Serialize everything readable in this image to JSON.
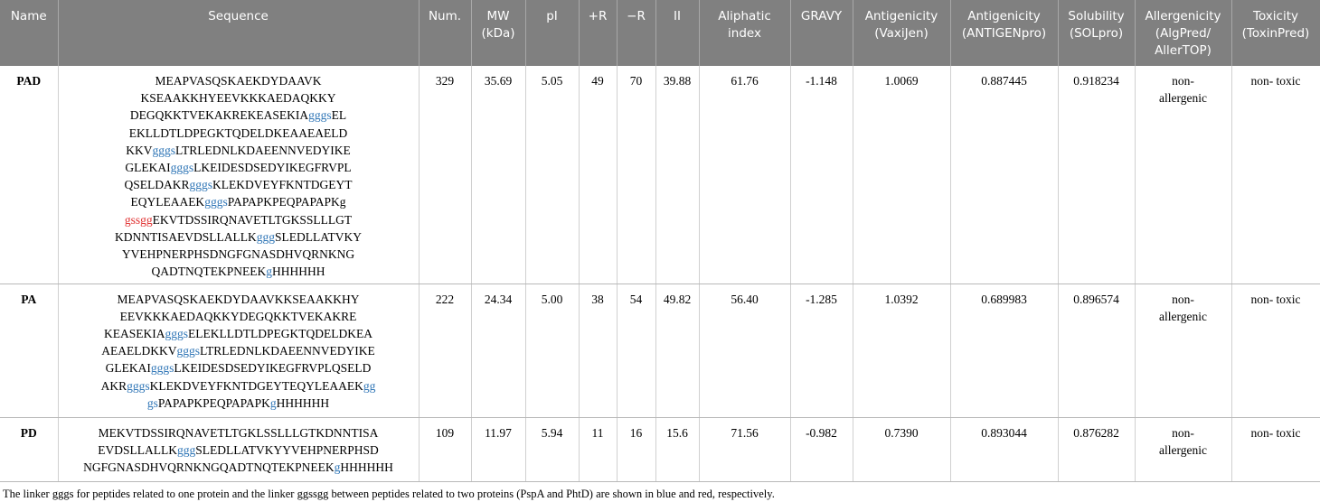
{
  "table": {
    "header": [
      [
        "Name"
      ],
      [
        "Sequence"
      ],
      [
        "Num."
      ],
      [
        "MW",
        "(kDa)"
      ],
      [
        "pI"
      ],
      [
        "+R"
      ],
      [
        "−R"
      ],
      [
        "II"
      ],
      [
        "Aliphatic",
        "index"
      ],
      [
        "GRAVY"
      ],
      [
        "Antigenicity",
        "(VaxiJen)"
      ],
      [
        "Antigenicity",
        "(ANTIGENpro)"
      ],
      [
        "Solubility",
        "(SOLpro)"
      ],
      [
        "Allergenicity",
        "(AlgPred/",
        "AllerTOP)"
      ],
      [
        "Toxicity",
        "(ToxinPred)"
      ]
    ],
    "rows": [
      {
        "name": "PAD",
        "sequence": [
          [
            "MEAPVASQSKAEKDYDAAVK"
          ],
          [
            "KSEAAKKHYEEVKKKAEDAQKKY"
          ],
          [
            "DEGQKKTVEKAKREKEASEKIA",
            {
              "text": "gggs",
              "color": "#2e75b6"
            },
            "EL"
          ],
          [
            "EKLLDTLDPEGKTQDELDKEAAEAELD"
          ],
          [
            "KKV",
            {
              "text": "gggs",
              "color": "#2e75b6"
            },
            "LTRLEDNLKDAEENNVEDYIKE"
          ],
          [
            "GLEKAI",
            {
              "text": "gggs",
              "color": "#2e75b6"
            },
            "LKEIDESDSEDYIKEGFRVPL"
          ],
          [
            "QSELDAKR",
            {
              "text": "gggs",
              "color": "#2e75b6"
            },
            "KLEKDVEYFKNTDGEYT"
          ],
          [
            "EQYLEAAEK",
            {
              "text": "gggs",
              "color": "#2e75b6"
            },
            "PAPAPKPEQPAPAPKg"
          ],
          [
            {
              "text": "gssgg",
              "color": "#e03030"
            },
            "EKVTDSSIRQNAVETLTGKSSLLLGT"
          ],
          [
            "KDNNTISAEVDSLLALLK",
            {
              "text": "ggg",
              "color": "#2e75b6"
            },
            "SLEDLLATVKY"
          ],
          [
            "YVEHPNERPHSDNGFGNASDHVQRNKNG"
          ],
          [
            "QADTNQTEKPNEEK",
            {
              "text": "g",
              "color": "#2e75b6"
            },
            "HHHHHH"
          ]
        ],
        "values": [
          "329",
          "35.69",
          "5.05",
          "49",
          "70",
          "39.88",
          "61.76",
          "-1.148",
          "1.0069",
          "0.887445",
          "0.918234",
          [
            "non-",
            "allergenic"
          ],
          [
            "non- toxic"
          ]
        ]
      },
      {
        "name": "PA",
        "sequence": [
          [
            "MEAPVASQSKAEKDYDAAVKKSEAAKKHY"
          ],
          [
            "EEVKKKAEDAQKKYDEGQKKTVEKAKRE"
          ],
          [
            "KEASEKIA",
            {
              "text": "gggs",
              "color": "#2e75b6"
            },
            "ELEKLLDTLDPEGKTQDELDKEA"
          ],
          [
            "AEAELDKKV",
            {
              "text": "gggs",
              "color": "#2e75b6"
            },
            "LTRLEDNLKDAEENNVEDYIKE"
          ],
          [
            "GLEKAI",
            {
              "text": "gggs",
              "color": "#2e75b6"
            },
            "LKEIDESDSEDYIKEGFRVPLQSELD"
          ],
          [
            "AKR",
            {
              "text": "gggs",
              "color": "#2e75b6"
            },
            "KLEKDVEYFKNTDGEYTEQYLEAAEK",
            {
              "text": "gg",
              "color": "#2e75b6"
            }
          ],
          [
            {
              "text": "gs",
              "color": "#2e75b6"
            },
            "PAPAPKPEQPAPAPK",
            {
              "text": "g",
              "color": "#2e75b6"
            },
            "HHHHHH"
          ]
        ],
        "values": [
          "222",
          "24.34",
          "5.00",
          "38",
          "54",
          "49.82",
          "56.40",
          "-1.285",
          "1.0392",
          "0.689983",
          "0.896574",
          [
            "non-",
            "allergenic"
          ],
          [
            "non- toxic"
          ]
        ]
      },
      {
        "name": "PD",
        "sequence": [
          [
            "MEKVTDSSIRQNAVETLTGKLSSLLLGTKDNNTISA"
          ],
          [
            "EVDSLLALLK",
            {
              "text": "ggg",
              "color": "#2e75b6"
            },
            "SLEDLLATVKYYVEHPNERPHSD"
          ],
          [
            "NGFGNASDHVQRNKNGQADTNQTEKPNEEK",
            {
              "text": "g",
              "color": "#2e75b6"
            },
            "HHHHHH"
          ]
        ],
        "values": [
          "109",
          "11.97",
          "5.94",
          "11",
          "16",
          "15.6",
          "71.56",
          "-0.982",
          "0.7390",
          "0.893044",
          "0.876282",
          [
            "non-",
            "allergenic"
          ],
          [
            "non- toxic"
          ]
        ]
      }
    ],
    "footnote": "The linker gggs for peptides related to one protein and the linker ggssgg between peptides related to two proteins (PspA and PhtD) are shown in blue and red, respectively."
  }
}
